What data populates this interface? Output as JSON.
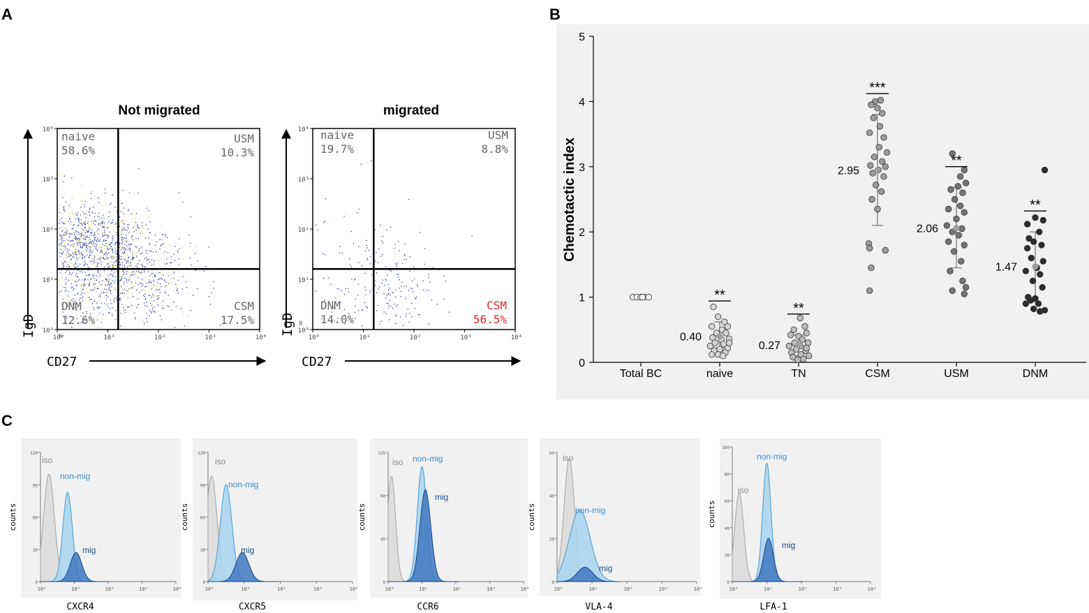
{
  "panels": {
    "A": "A",
    "B": "B",
    "C": "C"
  },
  "chart_data": [
    {
      "id": "A1",
      "type": "scatter",
      "title": "Not migrated",
      "xlabel": "CD27",
      "ylabel": "IgD",
      "xscale": "log",
      "yscale": "log",
      "xlim": [
        1,
        10000
      ],
      "ylim": [
        1,
        10000
      ],
      "x_ticks": [
        "10⁰",
        "10¹",
        "10²",
        "10³",
        "10⁴"
      ],
      "y_ticks": [
        "10⁰",
        "10¹",
        "10²",
        "10³",
        "10⁴"
      ],
      "extra_tick": "%",
      "gate_x": 16,
      "gate_y": 16,
      "quadrants": {
        "naive": {
          "name": "naive",
          "value": "58.6%"
        },
        "USM": {
          "name": "USM",
          "value": "10.3%"
        },
        "DNM": {
          "name": "DNM",
          "value": "12.6%"
        },
        "CSM": {
          "name": "CSM",
          "value": "17.5%",
          "color": "#666666"
        }
      },
      "clusters": [
        {
          "cx": 3.5,
          "cy": 50,
          "sx": 0.32,
          "sy": 0.22,
          "n": 1200
        },
        {
          "cx": 40,
          "cy": 10,
          "sx": 0.28,
          "sy": 0.25,
          "n": 500
        },
        {
          "cx": 3,
          "cy": 5,
          "sx": 0.25,
          "sy": 0.15,
          "n": 150
        }
      ],
      "dot_colors": [
        "#2b3f9e",
        "#2b3f9e",
        "#2b3f9e",
        "#d9c54a"
      ]
    },
    {
      "id": "A2",
      "type": "scatter",
      "title": "migrated",
      "xlabel": "CD27",
      "ylabel": "IgD",
      "xscale": "log",
      "yscale": "log",
      "xlim": [
        1,
        10000
      ],
      "ylim": [
        1,
        10000
      ],
      "x_ticks": [
        "10⁰",
        "10¹",
        "10²",
        "10³",
        "10⁴"
      ],
      "y_ticks": [
        "10⁰",
        "10¹",
        "10²",
        "10³",
        "10⁴"
      ],
      "extra_tick": "0",
      "gate_x": 16,
      "gate_y": 16,
      "quadrants": {
        "naive": {
          "name": "naive",
          "value": "19.7%"
        },
        "USM": {
          "name": "USM",
          "value": "8.8%"
        },
        "DNM": {
          "name": "DNM",
          "value": "14.0%"
        },
        "CSM": {
          "name": "CSM",
          "value": "56.5%",
          "color": "#e0262a"
        }
      },
      "clusters": [
        {
          "cx": 35,
          "cy": 6,
          "sx": 0.22,
          "sy": 0.25,
          "n": 150
        },
        {
          "cx": 5,
          "cy": 30,
          "sx": 0.3,
          "sy": 0.3,
          "n": 50
        },
        {
          "cx": 5,
          "cy": 6,
          "sx": 0.3,
          "sy": 0.2,
          "n": 40
        }
      ],
      "dot_colors": [
        "#2b3f9e"
      ]
    },
    {
      "id": "B",
      "type": "scatter",
      "ylabel": "Chemotactic index",
      "ylim": [
        0,
        5
      ],
      "y_ticks": [
        0,
        1,
        2,
        3,
        4,
        5
      ],
      "categories": [
        "Total BC",
        "naive",
        "TN",
        "CSM",
        "USM",
        "DNM"
      ],
      "colors": [
        "#f4f4f4",
        "#d6d6d6",
        "#bcbcbc",
        "#9c9c9c",
        "#747474",
        "#2c2c2c"
      ],
      "means": [
        1.0,
        0.4,
        0.27,
        2.95,
        2.06,
        1.47
      ],
      "mean_labels": [
        "",
        "0.40",
        "0.27",
        "2.95",
        "2.06",
        "1.47"
      ],
      "sd_low": [
        1.0,
        0.22,
        0.1,
        2.1,
        1.45,
        0.93
      ],
      "sd_high": [
        1.0,
        0.62,
        0.42,
        3.8,
        2.68,
        2.0
      ],
      "significance": [
        "",
        "**",
        "**",
        "***",
        "**",
        "**"
      ],
      "points": [
        [
          [
            -0.1,
            1
          ],
          [
            -0.05,
            1
          ],
          [
            0,
            1
          ],
          [
            0.05,
            1
          ],
          [
            0.1,
            1
          ],
          [
            0.02,
            1
          ]
        ],
        [
          [
            -0.08,
            0.85
          ],
          [
            -0.02,
            0.7
          ],
          [
            0.06,
            0.62
          ],
          [
            -0.1,
            0.55
          ],
          [
            0.03,
            0.5
          ],
          [
            0.1,
            0.55
          ],
          [
            -0.04,
            0.45
          ],
          [
            0.08,
            0.45
          ],
          [
            -0.09,
            0.38
          ],
          [
            0.12,
            0.36
          ],
          [
            0.02,
            0.35
          ],
          [
            -0.06,
            0.3
          ],
          [
            0.05,
            0.28
          ],
          [
            -0.12,
            0.25
          ],
          [
            0.1,
            0.22
          ],
          [
            0.0,
            0.2
          ],
          [
            -0.07,
            0.18
          ],
          [
            0.07,
            0.15
          ],
          [
            -0.02,
            0.12
          ],
          [
            0.04,
            0.1
          ],
          [
            -0.1,
            0.12
          ],
          [
            0.12,
            0.3
          ]
        ],
        [
          [
            0.02,
            0.68
          ],
          [
            0.08,
            0.55
          ],
          [
            -0.06,
            0.5
          ],
          [
            0.1,
            0.45
          ],
          [
            -0.1,
            0.42
          ],
          [
            0.0,
            0.4
          ],
          [
            0.05,
            0.35
          ],
          [
            -0.05,
            0.3
          ],
          [
            0.12,
            0.3
          ],
          [
            -0.12,
            0.25
          ],
          [
            0.02,
            0.25
          ],
          [
            -0.03,
            0.2
          ],
          [
            0.09,
            0.18
          ],
          [
            -0.09,
            0.15
          ],
          [
            0.03,
            0.12
          ],
          [
            0.13,
            0.1
          ],
          [
            -0.07,
            0.08
          ],
          [
            0.06,
            0.05
          ],
          [
            -0.01,
            0.04
          ],
          [
            0.1,
            0.22
          ]
        ],
        [
          [
            -0.03,
            4.0
          ],
          [
            0.04,
            4.02
          ],
          [
            -0.08,
            3.95
          ],
          [
            0.0,
            3.9
          ],
          [
            0.06,
            3.82
          ],
          [
            -0.05,
            3.75
          ],
          [
            0.03,
            3.62
          ],
          [
            -0.1,
            3.52
          ],
          [
            0.08,
            3.45
          ],
          [
            0.02,
            3.3
          ],
          [
            0.12,
            3.22
          ],
          [
            -0.04,
            3.15
          ],
          [
            0.06,
            3.08
          ],
          [
            -0.09,
            3.02
          ],
          [
            0.1,
            3.0
          ],
          [
            0.01,
            2.95
          ],
          [
            -0.06,
            2.9
          ],
          [
            0.08,
            2.85
          ],
          [
            -0.02,
            2.72
          ],
          [
            0.05,
            2.62
          ],
          [
            -0.07,
            2.5
          ],
          [
            0.0,
            2.35
          ],
          [
            -0.11,
            1.82
          ],
          [
            0.1,
            1.72
          ],
          [
            -0.1,
            1.75
          ],
          [
            -0.08,
            1.45
          ],
          [
            -0.1,
            1.1
          ]
        ],
        [
          [
            -0.05,
            3.2
          ],
          [
            0.1,
            2.95
          ],
          [
            0.05,
            2.85
          ],
          [
            0.12,
            2.75
          ],
          [
            0.02,
            2.7
          ],
          [
            -0.07,
            2.65
          ],
          [
            0.08,
            2.6
          ],
          [
            -0.02,
            2.5
          ],
          [
            0.05,
            2.4
          ],
          [
            -0.1,
            2.35
          ],
          [
            0.1,
            2.3
          ],
          [
            0.0,
            2.2
          ],
          [
            -0.12,
            2.1
          ],
          [
            0.07,
            2.05
          ],
          [
            -0.05,
            2.0
          ],
          [
            0.03,
            1.95
          ],
          [
            -0.1,
            1.85
          ],
          [
            0.1,
            1.8
          ],
          [
            -0.03,
            1.7
          ],
          [
            0.06,
            1.55
          ],
          [
            -0.08,
            1.4
          ],
          [
            0.08,
            1.25
          ],
          [
            0.12,
            1.15
          ],
          [
            -0.05,
            1.1
          ],
          [
            0.1,
            1.05
          ]
        ],
        [
          [
            0.12,
            2.95
          ],
          [
            0.0,
            2.22
          ],
          [
            0.1,
            2.18
          ],
          [
            -0.1,
            2.12
          ],
          [
            0.05,
            2.0
          ],
          [
            -0.08,
            1.9
          ],
          [
            -0.02,
            1.85
          ],
          [
            0.08,
            1.8
          ],
          [
            -0.1,
            1.75
          ],
          [
            -0.05,
            1.6
          ],
          [
            0.1,
            1.55
          ],
          [
            0.02,
            1.45
          ],
          [
            -0.12,
            1.4
          ],
          [
            0.06,
            1.35
          ],
          [
            -0.03,
            1.25
          ],
          [
            0.09,
            1.15
          ],
          [
            -0.09,
            1.0
          ],
          [
            0.0,
            0.98
          ],
          [
            -0.06,
            0.95
          ],
          [
            0.04,
            0.9
          ],
          [
            -0.02,
            0.82
          ],
          [
            0.06,
            0.78
          ],
          [
            0.12,
            0.8
          ],
          [
            -0.12,
            0.9
          ]
        ]
      ]
    },
    {
      "id": "C1",
      "type": "area",
      "xlabel": "CXCR4",
      "ylabel": "counts",
      "y_ticks": [
        "0",
        "30",
        "60",
        "90",
        "120"
      ],
      "ymax": 120,
      "x_ticks": [
        "10⁰",
        "10¹",
        "10²",
        "10³",
        "10⁴"
      ],
      "series": [
        {
          "name": "iso",
          "center": 0.25,
          "sd": 0.16,
          "height": 100
        },
        {
          "name": "non-mig",
          "center": 0.8,
          "sd": 0.14,
          "height": 83
        },
        {
          "name": "mig",
          "center": 1.05,
          "sd": 0.17,
          "height": 27
        }
      ]
    },
    {
      "id": "C2",
      "type": "area",
      "xlabel": "CXCR5",
      "ylabel": "counts",
      "y_ticks": [
        "0",
        "30",
        "60",
        "90",
        "120"
      ],
      "ymax": 120,
      "x_ticks": [
        "10⁰",
        "10¹",
        "10²",
        "10³",
        "10⁴"
      ],
      "series": [
        {
          "name": "iso",
          "center": 0.1,
          "sd": 0.15,
          "height": 98
        },
        {
          "name": "non-mig",
          "center": 0.5,
          "sd": 0.16,
          "height": 90
        },
        {
          "name": "mig",
          "center": 0.95,
          "sd": 0.18,
          "height": 27
        }
      ]
    },
    {
      "id": "C3",
      "type": "area",
      "xlabel": "CCR6",
      "ylabel": "counts",
      "y_ticks": [
        "0",
        "45",
        "90",
        "135"
      ],
      "ymax": 135,
      "x_ticks": [
        "10⁰",
        "10¹",
        "10²",
        "10³",
        "10⁴"
      ],
      "series": [
        {
          "name": "iso",
          "center": 0.1,
          "sd": 0.12,
          "height": 110
        },
        {
          "name": "non-mig",
          "center": 1.0,
          "sd": 0.14,
          "height": 120
        },
        {
          "name": "mig",
          "center": 1.1,
          "sd": 0.16,
          "height": 96
        }
      ]
    },
    {
      "id": "C4",
      "type": "area",
      "xlabel": "VLA-4",
      "ylabel": "counts",
      "y_ticks": [
        "0",
        "20",
        "40",
        "60"
      ],
      "ymax": 63,
      "x_ticks": [
        "10⁰",
        "10¹",
        "10²",
        "10³",
        "10⁴"
      ],
      "series": [
        {
          "name": "iso",
          "center": 0.35,
          "sd": 0.15,
          "height": 60
        },
        {
          "name": "non-mig",
          "center": 0.65,
          "sd": 0.3,
          "height": 35
        },
        {
          "name": "mig",
          "center": 0.8,
          "sd": 0.22,
          "height": 7
        }
      ]
    },
    {
      "id": "C5",
      "type": "area",
      "xlabel": "LFA-1",
      "ylabel": "counts",
      "y_ticks": [
        "0",
        "20",
        "40",
        "60",
        "80",
        "100"
      ],
      "ymax": 100,
      "x_ticks": [
        "10⁰",
        "10¹",
        "10²",
        "10³",
        "10⁴"
      ],
      "series": [
        {
          "name": "iso",
          "center": 0.2,
          "sd": 0.13,
          "height": 66
        },
        {
          "name": "non-mig",
          "center": 1.0,
          "sd": 0.12,
          "height": 88
        },
        {
          "name": "mig",
          "center": 1.05,
          "sd": 0.14,
          "height": 32
        }
      ]
    }
  ]
}
